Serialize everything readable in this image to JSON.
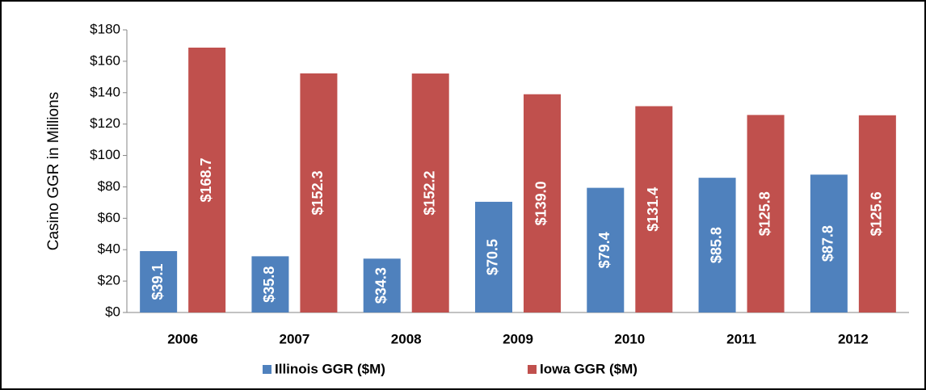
{
  "chart_data": {
    "type": "bar",
    "y_label": "Casino GGR in Millions",
    "categories": [
      "2006",
      "2007",
      "2008",
      "2009",
      "2010",
      "2011",
      "2012"
    ],
    "series": [
      {
        "name": "Illinois GGR ($M)",
        "color": "#4f81bd",
        "values": [
          39.1,
          35.8,
          34.3,
          70.5,
          79.4,
          85.8,
          87.8
        ],
        "value_labels": [
          "$39.1",
          "$35.8",
          "$34.3",
          "$70.5",
          "$79.4",
          "$85.8",
          "$87.8"
        ]
      },
      {
        "name": "Iowa GGR ($M)",
        "color": "#c0504d",
        "values": [
          168.7,
          152.3,
          152.2,
          139.0,
          131.4,
          125.8,
          125.6
        ],
        "value_labels": [
          "$168.7",
          "$152.3",
          "$152.2",
          "$139.0",
          "$131.4",
          "$125.8",
          "$125.6"
        ]
      }
    ],
    "ylim": [
      0,
      180
    ],
    "yticks": [
      {
        "value": 0,
        "label": "$0"
      },
      {
        "value": 20,
        "label": "$20"
      },
      {
        "value": 40,
        "label": "$40"
      },
      {
        "value": 60,
        "label": "$60"
      },
      {
        "value": 80,
        "label": "$80"
      },
      {
        "value": 100,
        "label": "$100"
      },
      {
        "value": 120,
        "label": "$120"
      },
      {
        "value": 140,
        "label": "$140"
      },
      {
        "value": 160,
        "label": "$160"
      },
      {
        "value": 180,
        "label": "$180"
      }
    ],
    "grid": false,
    "legend": "bottom"
  }
}
